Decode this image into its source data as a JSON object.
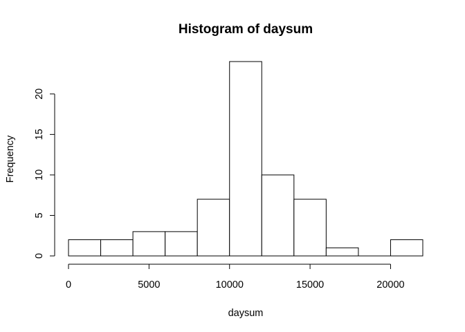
{
  "chart_data": {
    "type": "bar",
    "title": "Histogram of daysum",
    "xlabel": "daysum",
    "ylabel": "Frequency",
    "bins": [
      {
        "start": 0,
        "end": 2000,
        "count": 2
      },
      {
        "start": 2000,
        "end": 4000,
        "count": 2
      },
      {
        "start": 4000,
        "end": 6000,
        "count": 3
      },
      {
        "start": 6000,
        "end": 8000,
        "count": 3
      },
      {
        "start": 8000,
        "end": 10000,
        "count": 7
      },
      {
        "start": 10000,
        "end": 12000,
        "count": 24
      },
      {
        "start": 12000,
        "end": 14000,
        "count": 10
      },
      {
        "start": 14000,
        "end": 16000,
        "count": 7
      },
      {
        "start": 16000,
        "end": 18000,
        "count": 1
      },
      {
        "start": 18000,
        "end": 20000,
        "count": 0
      },
      {
        "start": 20000,
        "end": 22000,
        "count": 2
      }
    ],
    "xlim": [
      0,
      22000
    ],
    "ylim": [
      0,
      24
    ],
    "x_ticks": [
      0,
      5000,
      10000,
      15000,
      20000
    ],
    "y_ticks": [
      0,
      5,
      10,
      15,
      20
    ],
    "grid": false,
    "legend": "none",
    "colors": {
      "bar_fill": "#ffffff",
      "bar_stroke": "#000000"
    }
  }
}
